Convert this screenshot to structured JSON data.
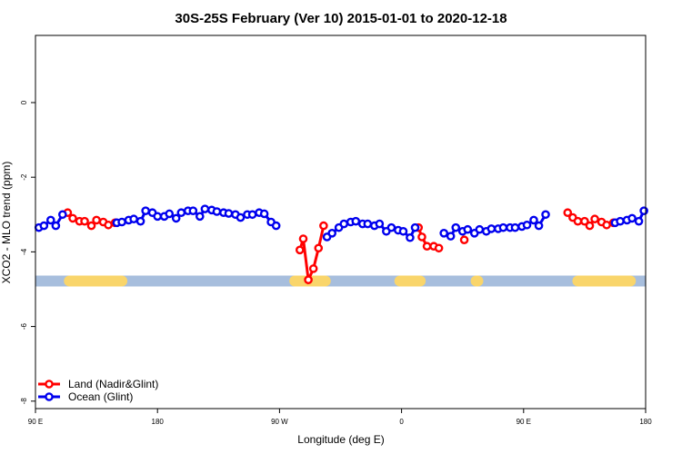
{
  "chart_data": {
    "type": "line",
    "title": "30S-25S February (Ver 10)   2015-01-01 to 2020-12-18",
    "xlabel": "Longitude (deg E)",
    "ylabel": "XCO2 - MLO trend (ppm)",
    "xlim": [
      90,
      450
    ],
    "ylim": [
      -8.2,
      1.8
    ],
    "x_ticks": [
      {
        "value": 90,
        "label": "90 E"
      },
      {
        "value": 162,
        "label": "180"
      },
      {
        "value": 234,
        "label": "90 W"
      },
      {
        "value": 306,
        "label": "0"
      },
      {
        "value": 378,
        "label": "90 E"
      },
      {
        "value": 450,
        "label": "180"
      }
    ],
    "y_ticks": [
      {
        "value": 0,
        "label": "0"
      },
      {
        "value": -2,
        "label": "-2"
      },
      {
        "value": -4,
        "label": "-4"
      },
      {
        "value": -6,
        "label": "-6"
      },
      {
        "value": -8,
        "label": "-8"
      }
    ],
    "legend": {
      "position": "bottom-left",
      "entries": [
        {
          "name": "Land (Nadir&Glint)",
          "color": "#ff0000"
        },
        {
          "name": "Ocean (Glint)",
          "color": "#0000ee"
        }
      ]
    },
    "colors": {
      "land": "#ff0000",
      "ocean": "#0000ee",
      "band_ocean": "#a7bedd",
      "band_land": "#f9d56b"
    },
    "band": {
      "y": -4.78,
      "land_segments": [
        [
          110,
          141
        ],
        [
          243,
          261
        ],
        [
          305,
          317
        ],
        [
          350,
          351
        ],
        [
          410,
          441
        ]
      ]
    },
    "series": [
      {
        "name": "Land (Nadir&Glint)",
        "color": "#ff0000",
        "segments": [
          [
            [
              109,
              -2.95
            ],
            [
              112,
              -3.1
            ],
            [
              116,
              -3.18
            ],
            [
              119,
              -3.18
            ],
            [
              123,
              -3.3
            ],
            [
              126,
              -3.15
            ],
            [
              130,
              -3.2
            ],
            [
              133,
              -3.28
            ],
            [
              137,
              -3.22
            ]
          ],
          [
            [
              246,
              -3.95
            ],
            [
              248,
              -3.65
            ],
            [
              251,
              -4.75
            ],
            [
              254,
              -4.45
            ],
            [
              257,
              -3.9
            ],
            [
              260,
              -3.3
            ]
          ],
          [
            [
              316,
              -3.35
            ],
            [
              318,
              -3.6
            ],
            [
              321,
              -3.85
            ],
            [
              325,
              -3.85
            ],
            [
              328,
              -3.9
            ]
          ],
          [
            [
              343,
              -3.68
            ]
          ],
          [
            [
              404,
              -2.95
            ],
            [
              407,
              -3.08
            ],
            [
              410,
              -3.18
            ],
            [
              414,
              -3.18
            ],
            [
              417,
              -3.3
            ],
            [
              420,
              -3.12
            ],
            [
              424,
              -3.2
            ],
            [
              427,
              -3.28
            ],
            [
              431,
              -3.22
            ]
          ]
        ]
      },
      {
        "name": "Ocean (Glint)",
        "color": "#0000ee",
        "segments": [
          [
            [
              92,
              -3.35
            ],
            [
              95,
              -3.3
            ],
            [
              99,
              -3.15
            ],
            [
              102,
              -3.3
            ],
            [
              106,
              -3.0
            ]
          ],
          [
            [
              138,
              -3.22
            ],
            [
              141,
              -3.2
            ],
            [
              145,
              -3.15
            ],
            [
              148,
              -3.12
            ],
            [
              152,
              -3.18
            ],
            [
              155,
              -2.9
            ],
            [
              159,
              -2.95
            ],
            [
              162,
              -3.05
            ],
            [
              166,
              -3.05
            ],
            [
              169,
              -2.98
            ],
            [
              173,
              -3.1
            ],
            [
              176,
              -2.95
            ],
            [
              180,
              -2.9
            ],
            [
              183,
              -2.9
            ],
            [
              187,
              -3.05
            ],
            [
              190,
              -2.85
            ],
            [
              194,
              -2.88
            ],
            [
              197,
              -2.92
            ],
            [
              201,
              -2.95
            ],
            [
              204,
              -2.97
            ],
            [
              208,
              -3.0
            ],
            [
              211,
              -3.08
            ],
            [
              215,
              -3.0
            ],
            [
              218,
              -3.0
            ],
            [
              222,
              -2.95
            ],
            [
              225,
              -2.98
            ],
            [
              229,
              -3.2
            ],
            [
              232,
              -3.3
            ]
          ],
          [
            [
              262,
              -3.6
            ],
            [
              265,
              -3.5
            ],
            [
              269,
              -3.35
            ],
            [
              272,
              -3.25
            ],
            [
              276,
              -3.2
            ],
            [
              279,
              -3.18
            ],
            [
              283,
              -3.25
            ],
            [
              286,
              -3.25
            ],
            [
              290,
              -3.3
            ],
            [
              293,
              -3.25
            ],
            [
              297,
              -3.45
            ],
            [
              300,
              -3.35
            ],
            [
              304,
              -3.42
            ],
            [
              307,
              -3.45
            ],
            [
              311,
              -3.62
            ],
            [
              314,
              -3.35
            ]
          ],
          [
            [
              331,
              -3.5
            ],
            [
              335,
              -3.58
            ],
            [
              338,
              -3.35
            ],
            [
              342,
              -3.45
            ],
            [
              345,
              -3.4
            ],
            [
              349,
              -3.5
            ],
            [
              352,
              -3.4
            ],
            [
              356,
              -3.45
            ],
            [
              359,
              -3.38
            ],
            [
              363,
              -3.38
            ],
            [
              366,
              -3.35
            ],
            [
              370,
              -3.35
            ],
            [
              373,
              -3.35
            ],
            [
              377,
              -3.32
            ],
            [
              380,
              -3.28
            ],
            [
              384,
              -3.15
            ],
            [
              387,
              -3.3
            ],
            [
              391,
              -3.0
            ]
          ],
          [
            [
              432,
              -3.22
            ],
            [
              435,
              -3.18
            ],
            [
              439,
              -3.15
            ],
            [
              442,
              -3.1
            ],
            [
              446,
              -3.18
            ],
            [
              449,
              -2.9
            ]
          ]
        ]
      }
    ]
  }
}
